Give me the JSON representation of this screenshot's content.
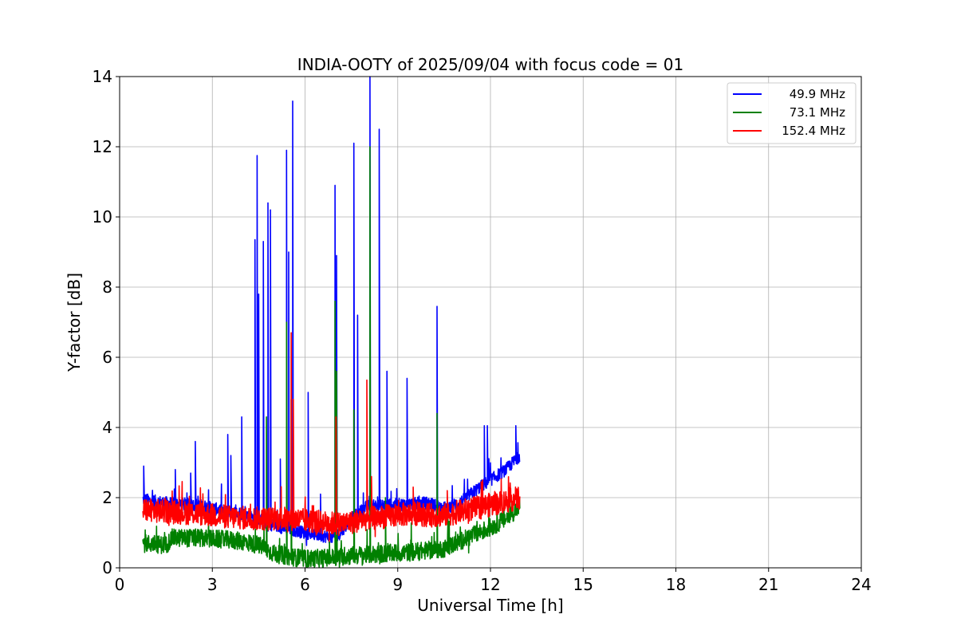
{
  "chart_data": {
    "type": "line",
    "title": "INDIA-OOTY of 2025/09/04 with focus code = 01",
    "xlabel": "Universal Time [h]",
    "ylabel": "Y-factor [dB]",
    "xlim": [
      0,
      24
    ],
    "ylim": [
      0,
      14
    ],
    "xticks": [
      0,
      3,
      6,
      9,
      12,
      15,
      18,
      21,
      24
    ],
    "yticks": [
      0,
      2,
      4,
      6,
      8,
      10,
      12,
      14
    ],
    "grid": true,
    "legend_position": "top-right",
    "series": [
      {
        "name": "49.9 MHz",
        "color": "#0000ff",
        "baseline": [
          [
            0.75,
            1.95
          ],
          [
            1.5,
            1.85
          ],
          [
            2.5,
            1.8
          ],
          [
            3.5,
            1.6
          ],
          [
            4.0,
            1.55
          ],
          [
            5.0,
            1.2
          ],
          [
            6.0,
            1.0
          ],
          [
            7.0,
            0.85
          ],
          [
            7.5,
            1.4
          ],
          [
            8.0,
            1.75
          ],
          [
            9.0,
            1.8
          ],
          [
            10.0,
            1.85
          ],
          [
            10.5,
            1.7
          ],
          [
            11.0,
            1.85
          ],
          [
            11.5,
            2.2
          ],
          [
            12.0,
            2.5
          ],
          [
            12.5,
            2.8
          ],
          [
            12.95,
            3.2
          ]
        ],
        "spikes": [
          [
            0.78,
            2.9
          ],
          [
            1.8,
            2.8
          ],
          [
            2.3,
            2.7
          ],
          [
            2.45,
            3.6
          ],
          [
            3.5,
            3.8
          ],
          [
            3.6,
            3.2
          ],
          [
            3.95,
            4.3
          ],
          [
            4.38,
            9.35
          ],
          [
            4.45,
            11.75
          ],
          [
            4.5,
            7.8
          ],
          [
            4.65,
            9.3
          ],
          [
            4.8,
            10.4
          ],
          [
            4.88,
            10.2
          ],
          [
            5.2,
            3.1
          ],
          [
            5.4,
            11.9
          ],
          [
            5.47,
            9.0
          ],
          [
            5.6,
            13.3
          ],
          [
            6.1,
            5.0
          ],
          [
            6.5,
            2.1
          ],
          [
            6.97,
            10.9
          ],
          [
            7.02,
            8.9
          ],
          [
            7.58,
            12.1
          ],
          [
            7.7,
            7.2
          ],
          [
            8.1,
            14.0
          ],
          [
            8.4,
            12.5
          ],
          [
            8.65,
            5.6
          ],
          [
            9.3,
            5.4
          ],
          [
            10.27,
            7.45
          ],
          [
            11.8,
            4.05
          ],
          [
            11.9,
            4.05
          ],
          [
            12.82,
            4.05
          ]
        ]
      },
      {
        "name": "73.1 MHz",
        "color": "#008000",
        "baseline": [
          [
            0.75,
            0.7
          ],
          [
            1.5,
            0.65
          ],
          [
            1.7,
            0.85
          ],
          [
            2.5,
            0.85
          ],
          [
            3.5,
            0.8
          ],
          [
            4.0,
            0.75
          ],
          [
            4.5,
            0.65
          ],
          [
            5.0,
            0.4
          ],
          [
            6.0,
            0.25
          ],
          [
            7.0,
            0.3
          ],
          [
            7.5,
            0.35
          ],
          [
            8.5,
            0.4
          ],
          [
            9.5,
            0.45
          ],
          [
            10.5,
            0.55
          ],
          [
            11.0,
            0.75
          ],
          [
            11.5,
            0.95
          ],
          [
            12.0,
            1.15
          ],
          [
            12.5,
            1.4
          ],
          [
            12.95,
            1.75
          ]
        ],
        "spikes": [
          [
            4.75,
            4.3
          ],
          [
            5.4,
            7.0
          ],
          [
            5.55,
            4.8
          ],
          [
            6.97,
            7.6
          ],
          [
            7.02,
            5.6
          ],
          [
            7.58,
            4.5
          ],
          [
            8.1,
            12.0
          ],
          [
            8.6,
            2.0
          ],
          [
            10.27,
            4.4
          ]
        ]
      },
      {
        "name": "152.4 MHz",
        "color": "#ff0000",
        "baseline": [
          [
            0.75,
            1.65
          ],
          [
            1.5,
            1.6
          ],
          [
            2.5,
            1.55
          ],
          [
            3.5,
            1.45
          ],
          [
            4.5,
            1.4
          ],
          [
            5.0,
            1.4
          ],
          [
            5.5,
            1.4
          ],
          [
            6.0,
            1.35
          ],
          [
            6.5,
            1.3
          ],
          [
            7.0,
            1.25
          ],
          [
            7.5,
            1.3
          ],
          [
            8.0,
            1.4
          ],
          [
            8.5,
            1.45
          ],
          [
            9.0,
            1.5
          ],
          [
            9.5,
            1.55
          ],
          [
            10.0,
            1.5
          ],
          [
            10.5,
            1.5
          ],
          [
            11.0,
            1.6
          ],
          [
            11.5,
            1.7
          ],
          [
            12.0,
            1.8
          ],
          [
            12.5,
            1.9
          ],
          [
            12.95,
            2.0
          ]
        ],
        "spikes": [
          [
            5.55,
            6.7
          ],
          [
            5.62,
            4.8
          ],
          [
            7.0,
            4.3
          ],
          [
            8.0,
            5.35
          ],
          [
            8.15,
            2.6
          ],
          [
            9.5,
            2.3
          ],
          [
            10.6,
            2.2
          ],
          [
            11.7,
            2.45
          ]
        ]
      }
    ]
  }
}
